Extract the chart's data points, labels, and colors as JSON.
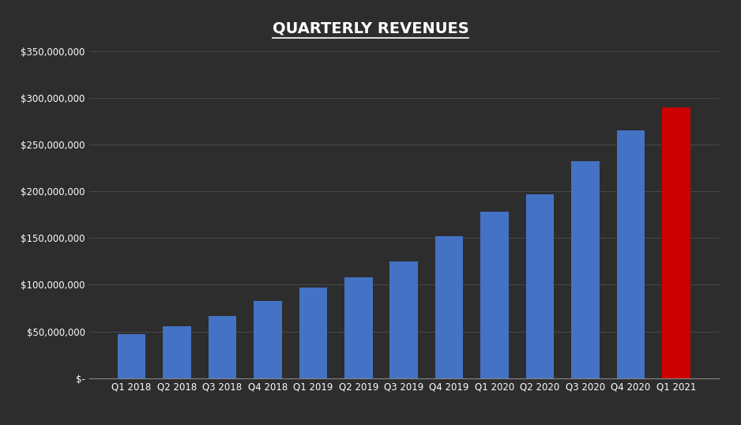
{
  "title": "QUARTERLY REVENUES",
  "categories": [
    "Q1 2018",
    "Q2 2018",
    "Q3 2018",
    "Q4 2018",
    "Q1 2019",
    "Q2 2019",
    "Q3 2019",
    "Q4 2019",
    "Q1 2020",
    "Q2 2020",
    "Q3 2020",
    "Q4 2020",
    "Q1 2021"
  ],
  "values": [
    47000000,
    56000000,
    67000000,
    83000000,
    97000000,
    108000000,
    125000000,
    152000000,
    178000000,
    197000000,
    232000000,
    265000000,
    290000000
  ],
  "bar_colors": [
    "#4472C4",
    "#4472C4",
    "#4472C4",
    "#4472C4",
    "#4472C4",
    "#4472C4",
    "#4472C4",
    "#4472C4",
    "#4472C4",
    "#4472C4",
    "#4472C4",
    "#4472C4",
    "#CC0000"
  ],
  "background_color": "#2d2d2d",
  "plot_bg_color": "#2d2d2d",
  "text_color": "#ffffff",
  "grid_color": "#555555",
  "ylim": [
    0,
    350000000
  ],
  "yticks": [
    0,
    50000000,
    100000000,
    150000000,
    200000000,
    250000000,
    300000000,
    350000000
  ],
  "title_fontsize": 14,
  "tick_fontsize": 8.5,
  "bar_width": 0.62
}
